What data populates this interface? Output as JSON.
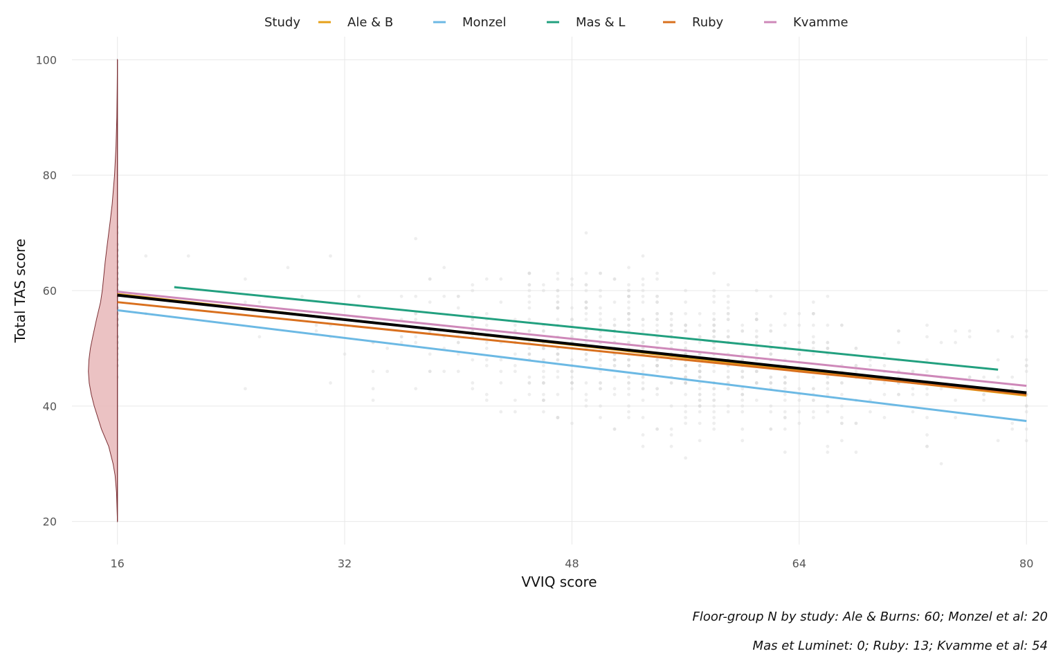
{
  "chart_data": {
    "type": "line",
    "title": "",
    "xlabel": "VVIQ score",
    "ylabel": "Total TAS score",
    "xlim": [
      12.8,
      81.5
    ],
    "ylim": [
      16,
      104
    ],
    "xticks": [
      16,
      32,
      48,
      64,
      80
    ],
    "yticks": [
      20,
      40,
      60,
      80,
      100
    ],
    "grid": true,
    "legend": {
      "title": "Study",
      "position": "top"
    },
    "series": [
      {
        "name": "Ale & B",
        "color": "#E6A019",
        "x": [
          16,
          80
        ],
        "y": [
          59.4,
          41.8
        ]
      },
      {
        "name": "Monzel",
        "color": "#6CB9E4",
        "x": [
          16,
          80
        ],
        "y": [
          56.6,
          37.4
        ]
      },
      {
        "name": "Mas & L",
        "color": "#22A07F",
        "x": [
          20,
          78
        ],
        "y": [
          60.6,
          46.3
        ]
      },
      {
        "name": "Ruby",
        "color": "#D9701E",
        "x": [
          16,
          80
        ],
        "y": [
          58.0,
          42.0
        ]
      },
      {
        "name": "Kvamme",
        "color": "#CE88B9",
        "x": [
          16,
          80
        ],
        "y": [
          59.8,
          43.5
        ]
      }
    ],
    "overall_fit": {
      "color": "#000000",
      "x": [
        16,
        80
      ],
      "y": [
        59.2,
        42.3
      ]
    },
    "density": {
      "x_position": 16,
      "fill": "#E7B7B9",
      "stroke": "#7A2E33",
      "y": [
        20,
        25,
        28,
        30,
        33,
        36,
        40,
        42,
        44,
        46,
        48,
        50,
        52,
        55,
        58,
        60,
        62,
        65,
        68,
        70,
        72,
        75,
        80,
        85,
        90,
        95,
        100
      ],
      "density": [
        0.0,
        0.03,
        0.08,
        0.15,
        0.3,
        0.55,
        0.8,
        0.9,
        0.97,
        1.0,
        0.98,
        0.93,
        0.85,
        0.72,
        0.58,
        0.52,
        0.48,
        0.42,
        0.35,
        0.3,
        0.25,
        0.18,
        0.1,
        0.05,
        0.02,
        0.01,
        0.0
      ]
    },
    "scatter_color": "#d9d9d9",
    "caption": [
      "Floor-group N by study: Ale & Burns: 60; Monzel et al: 20",
      "Mas et Luminet: 0; Ruby: 13; Kvamme et al: 54"
    ]
  }
}
